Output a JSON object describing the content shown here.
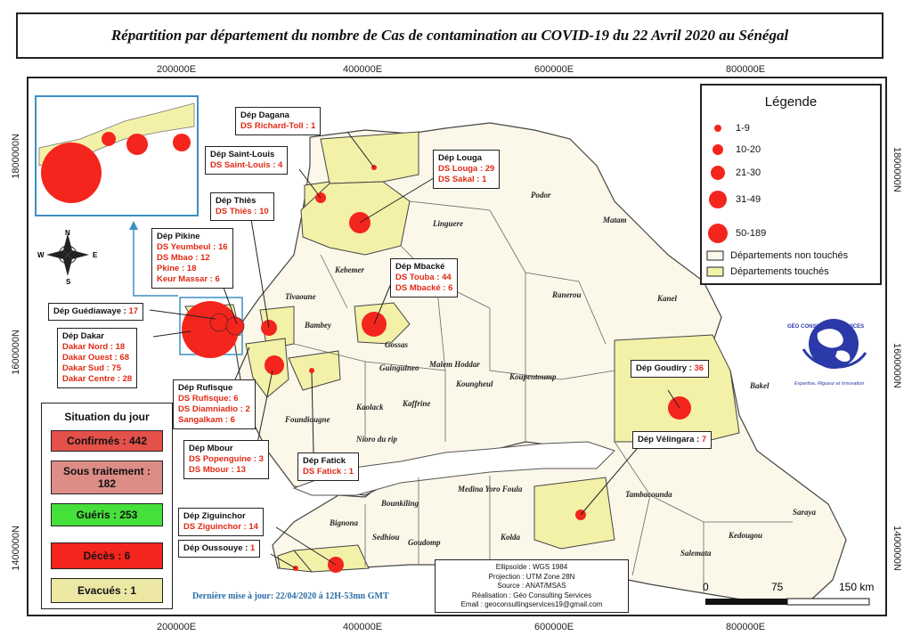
{
  "title": "Répartition par département du nombre de Cas de contamination au COVID-19 du 22 Avril 2020 au Sénégal",
  "coords": {
    "x_top": [
      "200000E",
      "400000E",
      "600000E",
      "800000E"
    ],
    "x_bottom": [
      "200000E",
      "400000E",
      "600000E",
      "800000E"
    ],
    "y_left": [
      "1800000N",
      "1600000N",
      "1400000N"
    ],
    "y_right": [
      "1800000N",
      "1600000N",
      "1400000N"
    ]
  },
  "legend": {
    "title": "Légende",
    "classes": [
      {
        "label": "1-9"
      },
      {
        "label": "10-20"
      },
      {
        "label": "21-30"
      },
      {
        "label": "31-49"
      },
      {
        "label": "50-189"
      }
    ],
    "untouched": "Départements non touchés",
    "touched": "Départements touchés",
    "colors": {
      "circle": "#f4251c",
      "touched": "#f3f0a8",
      "untouched": "#fbf8ea"
    }
  },
  "labels": {
    "dagana": {
      "t": "Dép Dagana",
      "lines": [
        "DS Richard-Toll : 1"
      ]
    },
    "saintlouis": {
      "t": "Dép Saint-Louis",
      "lines": [
        "DS Saint-Louis : 4"
      ]
    },
    "louga": {
      "t": "Dép Louga",
      "lines": [
        "DS Louga : 29",
        "DS Sakal : 1"
      ]
    },
    "thies": {
      "t": "Dép Thiès",
      "lines": [
        "DS Thiès : 10"
      ]
    },
    "pikine": {
      "t": "Dép Pikine",
      "lines": [
        "DS Yeumbeul : 16",
        "DS Mbao : 12",
        "Pkine : 18",
        "Keur Massar : 6"
      ]
    },
    "mbacke": {
      "t": "Dép Mbacké",
      "lines": [
        "DS Touba : 44",
        "DS Mbacké : 6"
      ]
    },
    "guediawaye": {
      "t": "Dép Guédiawaye : ",
      "v": "17"
    },
    "dakar": {
      "t": "Dép Dakar",
      "lines": [
        "Dakar Nord : 18",
        "Dakar Ouest : 68",
        "Dakar Sud : 75",
        "Dakar Centre : 28"
      ]
    },
    "rufisque": {
      "t": "Dép Rufisque",
      "lines": [
        "DS Rufisque: 6",
        "DS Diamniadio : 2",
        "Sangalkam : 6"
      ]
    },
    "mbour": {
      "t": "Dép Mbour",
      "lines": [
        "DS Popenguine : 3",
        "DS Mbour : 13"
      ]
    },
    "fatick": {
      "t": "Dép Fatick",
      "lines": [
        "DS Fatick : 1"
      ]
    },
    "goudiry": {
      "t": "Dép Goudiry : ",
      "v": "36"
    },
    "velingara": {
      "t": "Dép Vélingara : ",
      "v": "7"
    },
    "ziguinchor": {
      "t": "Dép Ziguinchor",
      "lines": [
        "DS Ziguinchor : 14"
      ]
    },
    "oussouye": {
      "t": "Dép Oussouye : ",
      "v": "1"
    }
  },
  "places": [
    "Podor",
    "Matam",
    "Linguere",
    "Kebemer",
    "Ranerou",
    "Kanel",
    "Tivaoune",
    "Bambey",
    "Gossas",
    "Guinguineo",
    "Malem Hoddar",
    "Koungheul",
    "Koupentoump",
    "Bakel",
    "Kaolack",
    "Kaffrine",
    "Foundiougne",
    "Nioro du rip",
    "Medina Yoro Foula",
    "Bounkiling",
    "Sedhiou",
    "Goudomp",
    "Kolda",
    "Bignona",
    "Tambacounda",
    "Saraya",
    "Kedougou",
    "Salemata"
  ],
  "situation": {
    "title": "Situation du jour",
    "confirmes": "Confirmés : 442",
    "sous_traitement": "Sous traitement : 182",
    "gueris": "Guéris : 253",
    "deces": "Décès : 6",
    "evacues": "Evacués : 1",
    "colors": {
      "confirmes": "#e4514a",
      "sous_traitement": "#dd8c86",
      "gueris": "#46e03a",
      "deces": "#f4251c",
      "evacues": "#ece8a4"
    }
  },
  "info": {
    "l1": "Ellipsoïde : WGS 1984",
    "l2": "Projection : UTM Zone 28N",
    "l3": "Source : ANAT/MSAS",
    "l4": "Réalisation : Géo Consulting Services",
    "l5": "Email : geoconsultingservices19@gmail.com"
  },
  "update": "Dernière mise à jour: 22/04/2020 à 12H-53mn GMT",
  "scale": {
    "t0": "0",
    "t1": "75",
    "t2": "150 km"
  },
  "compass": {
    "n": "N",
    "s": "S",
    "e": "E",
    "w": "W"
  },
  "logo": {
    "text": "GÉO CONSULTING SERVICES",
    "tagline": "Expertise, Rigueur et Innovation"
  }
}
